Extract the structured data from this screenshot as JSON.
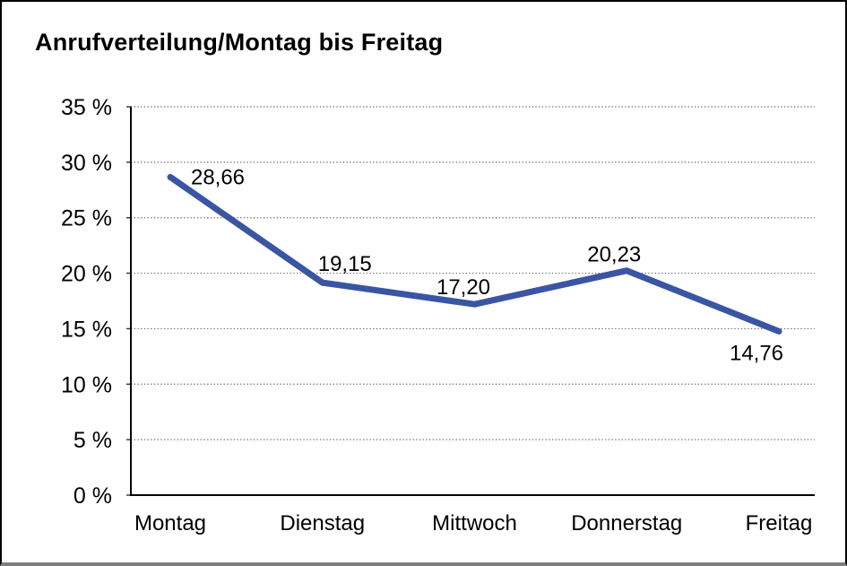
{
  "chart_data": {
    "type": "line",
    "title": "Anrufverteilung/Montag bis Freitag",
    "categories": [
      "Montag",
      "Dienstag",
      "Mittwoch",
      "Donnerstag",
      "Freitag"
    ],
    "values": [
      28.66,
      19.15,
      17.2,
      20.23,
      14.76
    ],
    "point_labels": [
      "28,66",
      "19,15",
      "17,20",
      "20,23",
      "14,76"
    ],
    "xlabel": "",
    "ylabel": "",
    "ylim": [
      0,
      35
    ],
    "ytick_step": 5,
    "ytick_labels": [
      "0 %",
      "5 %",
      "10 %",
      "15 %",
      "20 %",
      "25 %",
      "30 %",
      "35 %"
    ],
    "grid": "horizontal-dotted",
    "legend_position": "none",
    "colors": {
      "series_line": "#3A55A4",
      "axis": "#000000",
      "gridline": "#666666",
      "text": "#000000"
    }
  }
}
